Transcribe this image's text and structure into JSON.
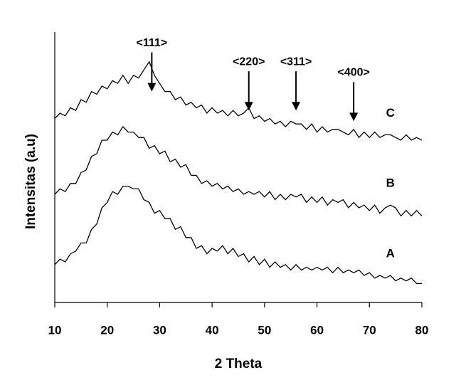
{
  "chart_data": {
    "type": "line",
    "x_label": "2 Theta",
    "y_label": "Intensitas (a.u)",
    "x": [
      10,
      11,
      12,
      13,
      14,
      15,
      16,
      17,
      18,
      19,
      20,
      21,
      22,
      23,
      24,
      25,
      26,
      27,
      28,
      29,
      30,
      31,
      32,
      33,
      34,
      35,
      36,
      37,
      38,
      39,
      40,
      41,
      42,
      43,
      44,
      45,
      46,
      47,
      48,
      49,
      50,
      51,
      52,
      53,
      54,
      55,
      56,
      57,
      58,
      59,
      60,
      61,
      62,
      63,
      64,
      65,
      66,
      67,
      68,
      69,
      70,
      71,
      72,
      73,
      74,
      75,
      76,
      77,
      78,
      79,
      80
    ],
    "series": [
      {
        "name": "A",
        "color": "#000000",
        "values": [
          14,
          16,
          15,
          18,
          19,
          22,
          22,
          27,
          29,
          35,
          37,
          41,
          40,
          43,
          43,
          42,
          42,
          38,
          37,
          33,
          34,
          31,
          31,
          27,
          28,
          24,
          24,
          20,
          21,
          18,
          20,
          19,
          21,
          18,
          20,
          17,
          18,
          15,
          17,
          14,
          16,
          13,
          15,
          13,
          14,
          12,
          14,
          12,
          13,
          12,
          13,
          12,
          13,
          11,
          13,
          11,
          12,
          11,
          12,
          10,
          11,
          9,
          10,
          9,
          10,
          8,
          9,
          8,
          9,
          7,
          7
        ]
      },
      {
        "name": "B",
        "color": "#000000",
        "values": [
          40,
          42,
          41,
          44,
          44,
          48,
          49,
          54,
          55,
          60,
          60,
          63,
          62,
          65,
          63,
          63,
          61,
          61,
          57,
          58,
          55,
          56,
          52,
          53,
          50,
          51,
          47,
          47,
          44,
          45,
          43,
          44,
          42,
          43,
          41,
          42,
          40,
          41,
          40,
          41,
          39,
          41,
          38,
          40,
          38,
          40,
          39,
          40,
          37,
          39,
          37,
          39,
          36,
          38,
          37,
          38,
          35,
          37,
          35,
          36,
          34,
          36,
          33,
          35,
          36,
          35,
          32,
          34,
          32,
          34,
          32
        ]
      },
      {
        "name": "C",
        "color": "#000000",
        "values": [
          68,
          70,
          69,
          72,
          71,
          75,
          74,
          78,
          77,
          80,
          79,
          82,
          81,
          84,
          81,
          84,
          83,
          86,
          89,
          84,
          81,
          78,
          78,
          75,
          76,
          73,
          74,
          72,
          73,
          70,
          72,
          70,
          71,
          69,
          71,
          69,
          70,
          72,
          68,
          69,
          67,
          68,
          66,
          67,
          65,
          67,
          66,
          66,
          64,
          66,
          63,
          65,
          63,
          64,
          64,
          63,
          62,
          64,
          61,
          63,
          61,
          63,
          61,
          62,
          62,
          61,
          60,
          62,
          60,
          61,
          60
        ]
      }
    ],
    "annotations": [
      {
        "text": "<111>",
        "x": 28.5,
        "y": 78
      },
      {
        "text": "<220>",
        "x": 47,
        "y": 71
      },
      {
        "text": "<311>",
        "x": 56,
        "y": 71
      },
      {
        "text": "<400>",
        "x": 67,
        "y": 67
      }
    ],
    "xlim": [
      10,
      80
    ],
    "xticks": [
      10,
      20,
      30,
      40,
      50,
      60,
      70,
      80
    ],
    "ylim": [
      0,
      100
    ]
  }
}
